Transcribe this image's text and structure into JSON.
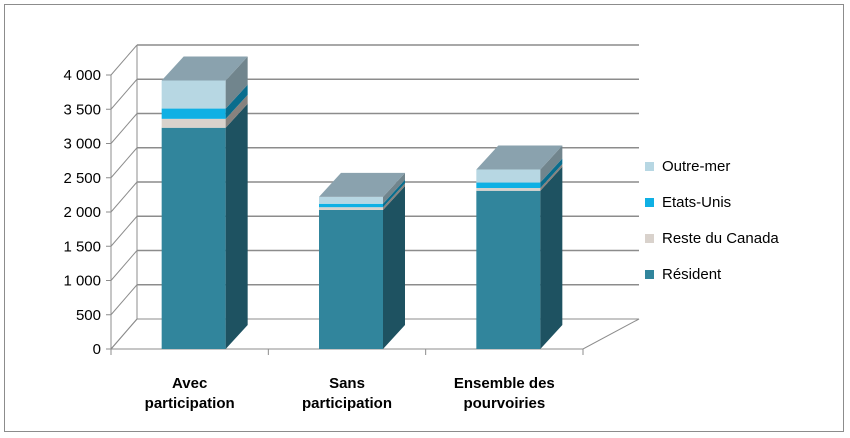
{
  "chart_data": {
    "type": "bar",
    "stacked": true,
    "three_d": true,
    "categories": [
      [
        "Avec",
        "participation"
      ],
      [
        "Sans",
        "participation"
      ],
      [
        "Ensemble des",
        "pourvoiries"
      ]
    ],
    "series": [
      {
        "name": "Résident",
        "color": "#31859c",
        "values": [
          3230,
          2030,
          2310
        ]
      },
      {
        "name": "Reste du Canada",
        "color": "#d9d2cc",
        "values": [
          130,
          40,
          40
        ]
      },
      {
        "name": "Etats-Unis",
        "color": "#0fb0e4",
        "values": [
          150,
          50,
          80
        ]
      },
      {
        "name": "Outre-mer",
        "color": "#b7d7e3",
        "values": [
          410,
          100,
          190
        ]
      }
    ],
    "y_ticks": [
      "0",
      "500",
      "1 000",
      "1 500",
      "2 000",
      "2 500",
      "3 000",
      "3 500",
      "4 000"
    ],
    "ylim": [
      0,
      4000
    ],
    "grid": true,
    "legend_position": "right",
    "title": "",
    "xlabel": "",
    "ylabel": ""
  }
}
